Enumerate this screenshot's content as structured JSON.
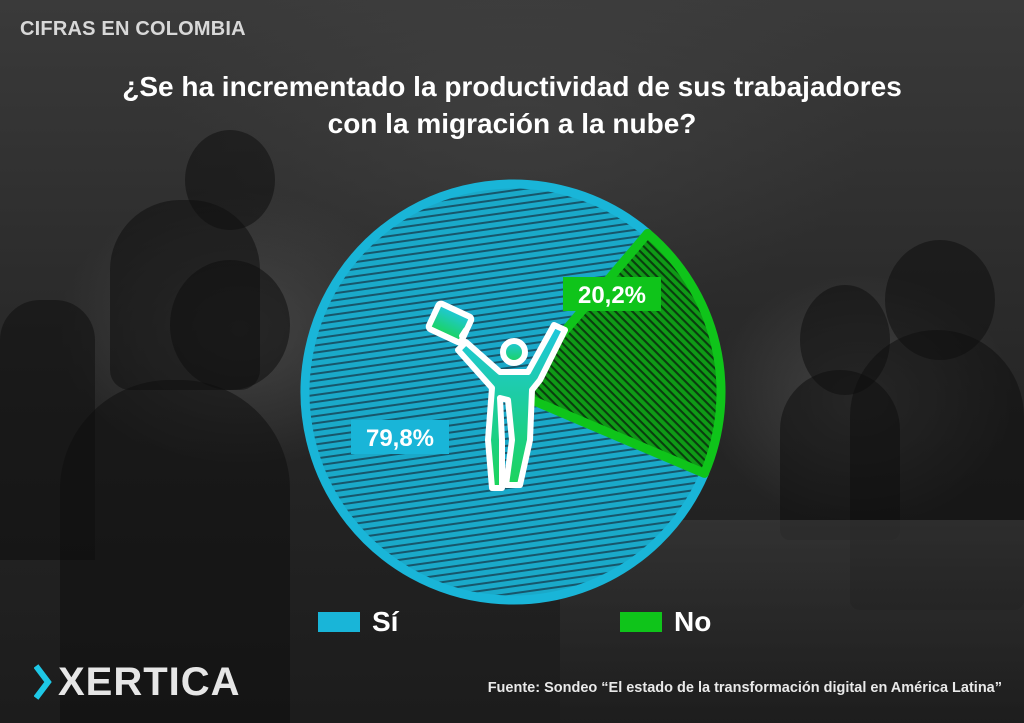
{
  "header": {
    "tag": "CIFRAS EN COLOMBIA"
  },
  "question": {
    "line1": "¿Se ha incrementado la productividad de sus trabajadores",
    "line2": "con la migración a la nube?"
  },
  "chart_data": {
    "type": "pie",
    "title": "¿Se ha incrementado la productividad de sus trabajadores con la migración a la nube?",
    "categories": [
      "Sí",
      "No"
    ],
    "values": [
      79.8,
      20.2
    ],
    "labels": [
      "79,8%",
      "20,2%"
    ],
    "colors": [
      "#19b5d8",
      "#0fc41a"
    ],
    "legend_position": "bottom"
  },
  "legend": [
    {
      "label": "Sí",
      "color": "#19b5d8"
    },
    {
      "label": "No",
      "color": "#0fc41a"
    }
  ],
  "center_icon": "person-raising-arms-with-briefcase-icon",
  "brand": {
    "name": "XERTICA",
    "icon": "xertica-chevron-logo-icon",
    "accent": "#1ec8e6"
  },
  "source": "Fuente: Sondeo “El estado de la transformación digital en América Latina”"
}
